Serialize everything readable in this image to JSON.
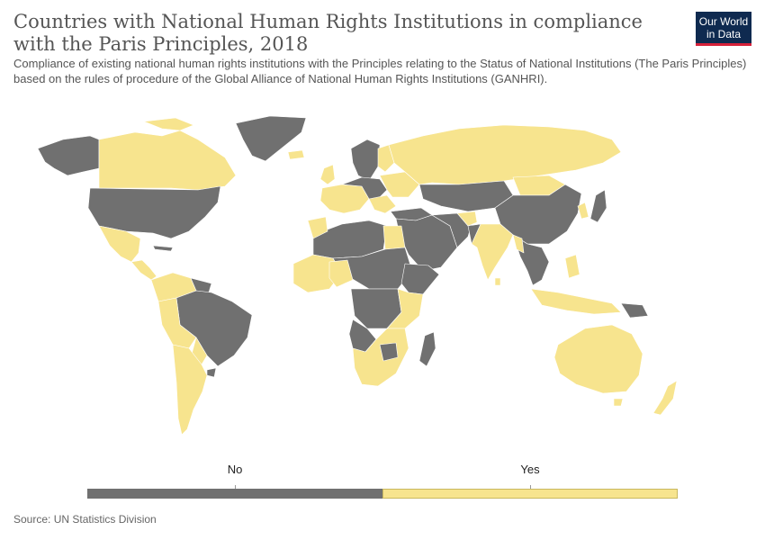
{
  "header": {
    "title": "Countries with National Human Rights Institutions in compliance with the Paris Principles, 2018",
    "subtitle": "Compliance of existing national human rights institutions with the Principles relating to the Status of National Institutions (The Paris Principles) based on the rules of procedure of the Global Alliance of National Human Rights Institutions (GANHRI).",
    "logo_line1": "Our World",
    "logo_line2": "in Data"
  },
  "colors": {
    "no": "#707070",
    "yes": "#f7e48e",
    "land_stroke": "#ffffff",
    "logo_bg": "#0f2a50",
    "logo_accent": "#d6213a"
  },
  "legend": {
    "items": [
      {
        "label": "No",
        "color": "#707070"
      },
      {
        "label": "Yes",
        "color": "#f7e48e"
      }
    ]
  },
  "footer": {
    "source": "Source: UN Statistics Division"
  }
}
